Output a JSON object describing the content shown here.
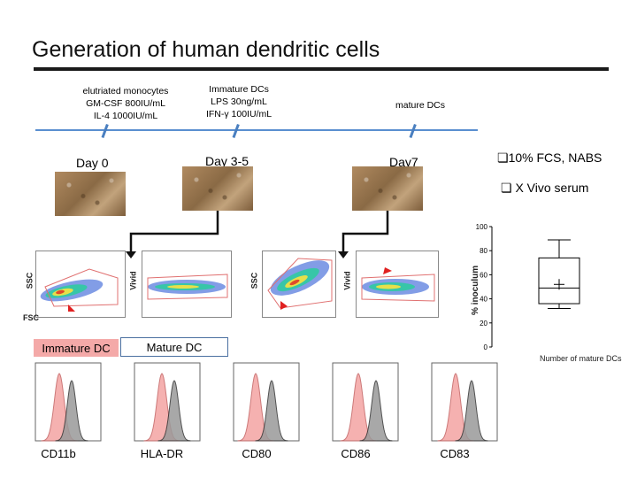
{
  "title": "Generation of human dendritic cells",
  "stages": [
    {
      "lines": [
        "elutriated  monocytes",
        "GM-CSF 800IU/mL",
        "IL-4 1000IU/mL"
      ]
    },
    {
      "lines": [
        "Immature DCs",
        "LPS 30ng/mL",
        "IFN-γ 100IU/mL"
      ]
    },
    {
      "lines": [
        "mature DCs"
      ]
    }
  ],
  "days": [
    "Day 0",
    "Day 3-5",
    "Day7"
  ],
  "bullets": [
    "10% FCS, NABS",
    "X Vivo serum"
  ],
  "bullet_glyph": "❏",
  "flow": {
    "axis_ssc": "SSC",
    "axis_vivid": "Vivid",
    "axis_fsc": "FSC"
  },
  "legend": {
    "immature": "Immature DC",
    "mature": "Mature DC",
    "immature_color": "#f4a9a8",
    "mature_color": "#9a9a9a"
  },
  "markers": [
    "CD11b",
    "HLA-DR",
    "CD80",
    "CD86",
    "CD83"
  ],
  "chart_data": {
    "type": "box",
    "ylabel": "% inoculum",
    "xlabel": "Number of mature DCs",
    "ylim": [
      0,
      100
    ],
    "yticks": [
      0,
      20,
      40,
      60,
      80,
      100
    ],
    "box": {
      "min": 32,
      "q1": 36,
      "median": 49,
      "mean": 52,
      "q3": 74,
      "max": 89
    }
  }
}
